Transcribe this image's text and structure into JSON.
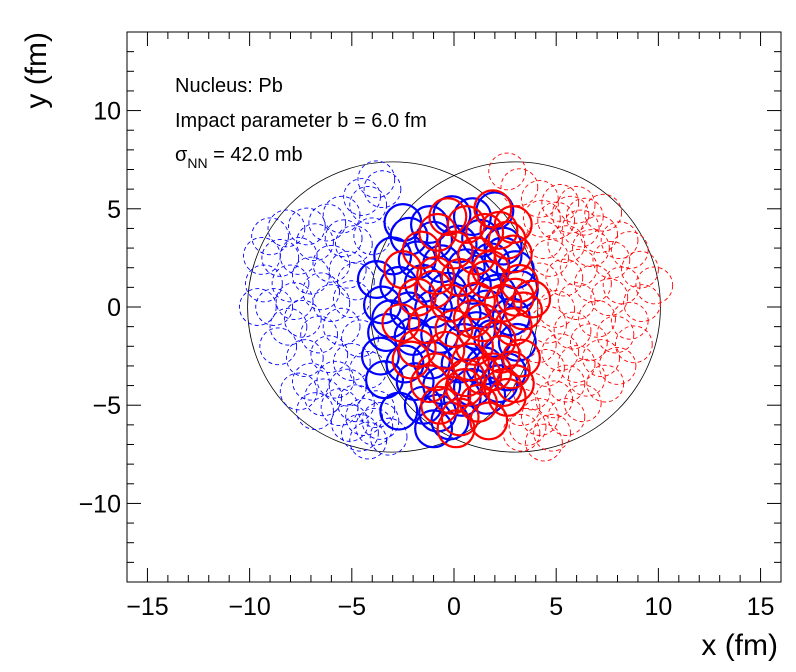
{
  "chart_data": {
    "type": "scatter",
    "xlabel": "x (fm)",
    "ylabel": "y (fm)",
    "xlim": [
      -16,
      16
    ],
    "ylim": [
      -14,
      14
    ],
    "xticks": [
      -15,
      -10,
      -5,
      0,
      5,
      10,
      15
    ],
    "yticks": [
      -10,
      -5,
      0,
      5,
      10
    ],
    "xtick_labels": [
      "−15",
      "−10",
      "−5",
      "0",
      "5",
      "10",
      "15"
    ],
    "ytick_labels": [
      "−10",
      "−5",
      "0",
      "5",
      "10"
    ],
    "grid": false,
    "legend": "none",
    "annotations": {
      "nucleus": "Nucleus: Pb",
      "impact": "Impact parameter b = 6.0 fm",
      "sigma_symbol": "σ",
      "sigma_sub": "NN",
      "sigma_rest": " = 42.0 mb"
    },
    "nucleon_radius_fm": 0.9,
    "nuclei": [
      {
        "center": [
          -3.0,
          0.0
        ],
        "radius": 7.1,
        "color": "#000000"
      },
      {
        "center": [
          3.0,
          0.0
        ],
        "radius": 7.1,
        "color": "#000000"
      }
    ],
    "series": [
      {
        "nucleus": "A",
        "role": "spectator",
        "color": "#0000ff",
        "style": "dashed",
        "points": [
          [
            -3.5,
            6.0
          ],
          [
            -3.8,
            6.5
          ],
          [
            -4.5,
            5.6
          ],
          [
            -4.2,
            5.2
          ],
          [
            -5.5,
            4.7
          ],
          [
            -6.2,
            4.3
          ],
          [
            -7.2,
            4.1
          ],
          [
            -8.2,
            4.0
          ],
          [
            -9.0,
            3.6
          ],
          [
            -6.8,
            3.3
          ],
          [
            -5.4,
            3.5
          ],
          [
            -4.9,
            3.2
          ],
          [
            -4.0,
            3.6
          ],
          [
            -7.6,
            2.6
          ],
          [
            -8.5,
            2.5
          ],
          [
            -9.4,
            2.6
          ],
          [
            -6.0,
            2.2
          ],
          [
            -5.2,
            1.9
          ],
          [
            -7.0,
            1.6
          ],
          [
            -8.0,
            1.2
          ],
          [
            -9.3,
            1.2
          ],
          [
            -6.5,
            0.8
          ],
          [
            -4.8,
            1.3
          ],
          [
            -7.8,
            0.3
          ],
          [
            -8.8,
            0.0
          ],
          [
            -9.6,
            0.0
          ],
          [
            -6.0,
            0.2
          ],
          [
            -5.0,
            0.4
          ],
          [
            -7.4,
            -0.6
          ],
          [
            -8.1,
            -1.0
          ],
          [
            -6.6,
            -1.4
          ],
          [
            -5.5,
            -1.0
          ],
          [
            -4.6,
            -1.6
          ],
          [
            -8.6,
            -2.0
          ],
          [
            -7.3,
            -2.6
          ],
          [
            -6.1,
            -2.4
          ],
          [
            -5.0,
            -2.8
          ],
          [
            -4.2,
            -3.2
          ],
          [
            -7.0,
            -3.8
          ],
          [
            -5.8,
            -3.7
          ],
          [
            -5.2,
            -4.1
          ],
          [
            -7.6,
            -4.3
          ],
          [
            -6.4,
            -4.6
          ],
          [
            -4.8,
            -4.9
          ],
          [
            -5.6,
            -5.1
          ],
          [
            -3.8,
            -5.2
          ],
          [
            -4.4,
            -5.6
          ],
          [
            -6.8,
            -5.3
          ],
          [
            -5.1,
            -5.9
          ],
          [
            -3.9,
            -6.1
          ],
          [
            -4.6,
            -6.4
          ],
          [
            -3.2,
            -6.6
          ],
          [
            -4.2,
            -6.8
          ],
          [
            -3.6,
            -5.8
          ],
          [
            -2.5,
            4.3
          ],
          [
            -3.0,
            2.6
          ]
        ]
      },
      {
        "nucleus": "B",
        "role": "spectator",
        "color": "#ff0000",
        "style": "dashed",
        "points": [
          [
            2.6,
            6.9
          ],
          [
            3.2,
            6.1
          ],
          [
            4.2,
            5.5
          ],
          [
            5.2,
            5.3
          ],
          [
            6.0,
            5.2
          ],
          [
            5.7,
            4.7
          ],
          [
            6.4,
            4.6
          ],
          [
            7.3,
            4.8
          ],
          [
            4.3,
            4.5
          ],
          [
            5.0,
            4.4
          ],
          [
            6.2,
            4.0
          ],
          [
            7.1,
            3.7
          ],
          [
            8.1,
            3.4
          ],
          [
            4.4,
            3.4
          ],
          [
            5.5,
            3.2
          ],
          [
            6.7,
            3.0
          ],
          [
            8.6,
            2.9
          ],
          [
            7.7,
            2.4
          ],
          [
            4.7,
            2.5
          ],
          [
            6.1,
            2.0
          ],
          [
            9.1,
            1.9
          ],
          [
            9.8,
            1.1
          ],
          [
            5.4,
            1.5
          ],
          [
            6.8,
            1.2
          ],
          [
            8.2,
            1.1
          ],
          [
            4.2,
            1.3
          ],
          [
            7.6,
            0.5
          ],
          [
            6.0,
            0.3
          ],
          [
            9.2,
            0.2
          ],
          [
            5.0,
            -0.1
          ],
          [
            8.6,
            -0.7
          ],
          [
            7.0,
            -0.6
          ],
          [
            4.6,
            -0.9
          ],
          [
            5.8,
            -1.2
          ],
          [
            7.9,
            -1.4
          ],
          [
            6.6,
            -1.8
          ],
          [
            8.8,
            -1.9
          ],
          [
            4.1,
            -1.9
          ],
          [
            5.2,
            -2.3
          ],
          [
            7.2,
            -2.6
          ],
          [
            6.0,
            -2.9
          ],
          [
            8.0,
            -3.0
          ],
          [
            4.5,
            -3.1
          ],
          [
            6.5,
            -3.6
          ],
          [
            7.4,
            -3.9
          ],
          [
            5.5,
            -3.9
          ],
          [
            3.8,
            -4.3
          ],
          [
            4.9,
            -4.7
          ],
          [
            6.3,
            -4.9
          ],
          [
            3.3,
            -5.1
          ],
          [
            4.2,
            -5.6
          ],
          [
            5.5,
            -5.6
          ],
          [
            3.6,
            -6.1
          ],
          [
            4.8,
            -6.4
          ],
          [
            4.4,
            -6.9
          ],
          [
            3.3,
            -6.4
          ]
        ]
      },
      {
        "nucleus": "A",
        "role": "participant",
        "color": "#0000ff",
        "style": "solid",
        "points": [
          [
            -1.2,
            4.2
          ],
          [
            -0.1,
            4.7
          ],
          [
            0.9,
            4.6
          ],
          [
            2.0,
            4.9
          ],
          [
            -2.2,
            3.6
          ],
          [
            -1.0,
            3.4
          ],
          [
            0.2,
            3.2
          ],
          [
            1.3,
            3.5
          ],
          [
            2.4,
            3.1
          ],
          [
            -3.0,
            2.6
          ],
          [
            -1.8,
            2.4
          ],
          [
            -0.6,
            2.2
          ],
          [
            0.6,
            2.0
          ],
          [
            1.8,
            2.3
          ],
          [
            3.0,
            1.9
          ],
          [
            -3.8,
            1.4
          ],
          [
            -2.7,
            1.1
          ],
          [
            -1.5,
            1.2
          ],
          [
            -0.3,
            0.8
          ],
          [
            0.9,
            1.1
          ],
          [
            2.1,
            0.7
          ],
          [
            3.2,
            0.9
          ],
          [
            -3.5,
            0.1
          ],
          [
            -2.2,
            -0.2
          ],
          [
            -1.0,
            -0.1
          ],
          [
            0.4,
            -0.3
          ],
          [
            1.6,
            -0.1
          ],
          [
            2.8,
            -0.5
          ],
          [
            -3.3,
            -1.3
          ],
          [
            -2.0,
            -1.5
          ],
          [
            -0.7,
            -1.4
          ],
          [
            0.5,
            -1.8
          ],
          [
            1.9,
            -1.6
          ],
          [
            3.1,
            -1.8
          ],
          [
            -3.6,
            -2.5
          ],
          [
            -2.4,
            -2.9
          ],
          [
            -1.1,
            -2.7
          ],
          [
            0.3,
            -2.9
          ],
          [
            1.5,
            -3.0
          ],
          [
            2.6,
            -3.3
          ],
          [
            -3.4,
            -3.7
          ],
          [
            -1.9,
            -3.8
          ],
          [
            -0.6,
            -4.0
          ],
          [
            0.9,
            -4.1
          ],
          [
            2.2,
            -3.9
          ],
          [
            -2.7,
            -5.3
          ],
          [
            -1.5,
            -5.0
          ],
          [
            -0.8,
            -5.4
          ],
          [
            0.4,
            -4.6
          ],
          [
            1.6,
            -4.5
          ],
          [
            -1.0,
            -6.2
          ],
          [
            -0.2,
            -5.8
          ],
          [
            -3.1,
            -0.6
          ],
          [
            2.4,
            2.6
          ],
          [
            -2.5,
            4.3
          ],
          [
            1.1,
            -1.2
          ]
        ]
      },
      {
        "nucleus": "B",
        "role": "participant",
        "color": "#ff0000",
        "style": "solid",
        "points": [
          [
            1.9,
            5.0
          ],
          [
            0.6,
            4.2
          ],
          [
            2.9,
            4.2
          ],
          [
            -0.8,
            3.8
          ],
          [
            1.5,
            3.8
          ],
          [
            2.6,
            3.4
          ],
          [
            -1.6,
            2.9
          ],
          [
            0.0,
            2.9
          ],
          [
            1.1,
            2.6
          ],
          [
            2.9,
            2.7
          ],
          [
            -2.5,
            1.9
          ],
          [
            -0.9,
            1.6
          ],
          [
            0.3,
            1.5
          ],
          [
            1.6,
            1.4
          ],
          [
            3.2,
            1.2
          ],
          [
            -1.8,
            0.5
          ],
          [
            -0.2,
            0.2
          ],
          [
            1.1,
            0.3
          ],
          [
            2.4,
            0.2
          ],
          [
            3.8,
            0.4
          ],
          [
            -2.6,
            -0.8
          ],
          [
            -1.3,
            -0.9
          ],
          [
            0.0,
            -1.1
          ],
          [
            1.4,
            -0.8
          ],
          [
            2.9,
            -1.0
          ],
          [
            -1.8,
            -2.1
          ],
          [
            -0.4,
            -2.2
          ],
          [
            1.0,
            -2.0
          ],
          [
            2.3,
            -2.4
          ],
          [
            3.3,
            -2.6
          ],
          [
            -0.9,
            -3.3
          ],
          [
            0.6,
            -3.6
          ],
          [
            1.9,
            -3.3
          ],
          [
            3.0,
            -3.9
          ],
          [
            -0.1,
            -4.5
          ],
          [
            1.2,
            -4.9
          ],
          [
            2.6,
            -4.6
          ],
          [
            0.3,
            -5.6
          ],
          [
            1.7,
            -5.8
          ],
          [
            0.1,
            -6.2
          ],
          [
            -0.7,
            -5.0
          ],
          [
            2.1,
            -1.7
          ],
          [
            0.8,
            -2.8
          ],
          [
            -1.2,
            -3.9
          ],
          [
            3.4,
            -0.2
          ],
          [
            2.2,
            3.9
          ],
          [
            -0.3,
            4.6
          ],
          [
            1.4,
            -3.5
          ],
          [
            3.0,
            0.5
          ],
          [
            0.5,
            -4.1
          ],
          [
            -2.1,
            -2.7
          ],
          [
            2.8,
            -3.2
          ],
          [
            1.8,
            1.9
          ],
          [
            -1.0,
            0.9
          ],
          [
            0.9,
            -0.6
          ],
          [
            2.4,
            -4.1
          ]
        ]
      }
    ]
  }
}
